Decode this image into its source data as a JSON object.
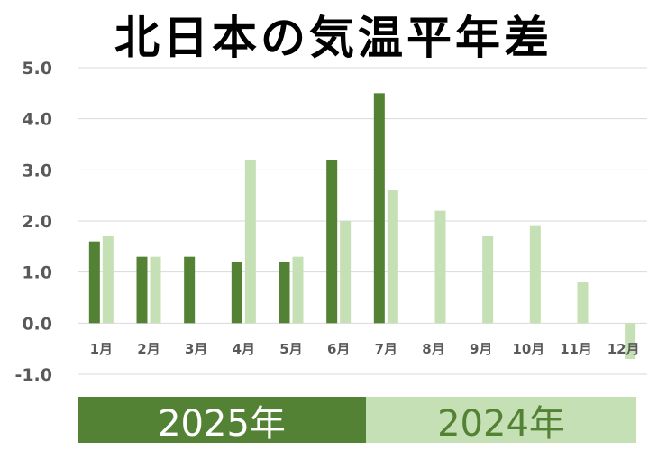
{
  "chart_data": {
    "type": "bar",
    "title": "北日本の気温平年差",
    "categories": [
      "1月",
      "2月",
      "3月",
      "4月",
      "5月",
      "6月",
      "7月",
      "8月",
      "9月",
      "10月",
      "11月",
      "12月"
    ],
    "series": [
      {
        "name": "2025年",
        "color": "#548235",
        "values": [
          1.6,
          1.3,
          1.3,
          1.2,
          1.2,
          3.2,
          4.5,
          null,
          null,
          null,
          null,
          null
        ]
      },
      {
        "name": "2024年",
        "color": "#c5e0b4",
        "values": [
          1.7,
          1.3,
          null,
          3.2,
          1.3,
          2.0,
          2.6,
          2.2,
          1.7,
          1.9,
          0.8,
          -0.7
        ]
      }
    ],
    "yticks": [
      "5.0",
      "4.0",
      "3.0",
      "2.0",
      "1.0",
      "0.0",
      "-1.0"
    ],
    "ylim": [
      -1.0,
      5.0
    ],
    "grid": true,
    "legend_placement": "bottom"
  }
}
